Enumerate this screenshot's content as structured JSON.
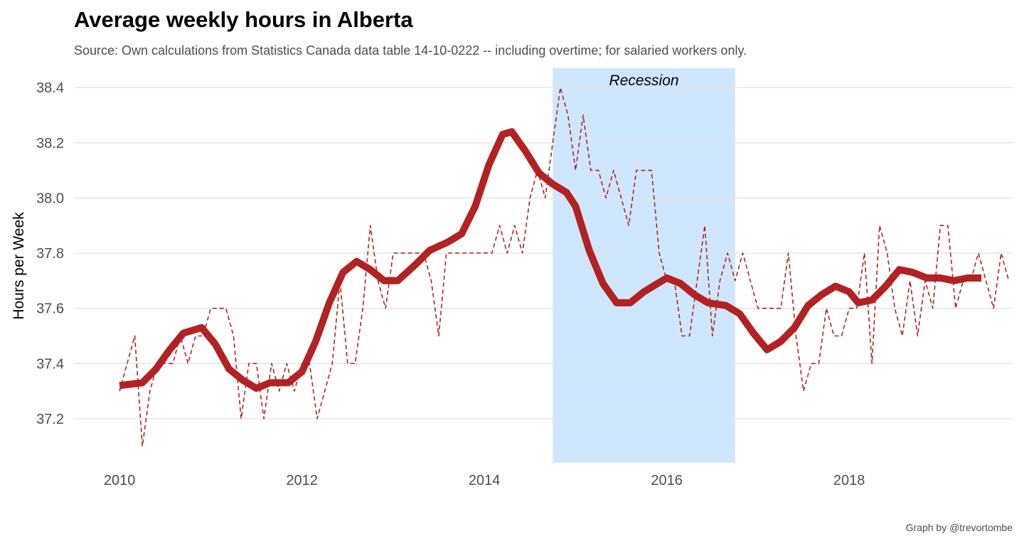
{
  "chart_data": {
    "type": "line",
    "title": "Average weekly hours in Alberta",
    "subtitle": "Source: Own calculations from  Statistics Canada data table 14-10-0222 -- including overtime; for salaried workers only.",
    "caption": "Graph by @trevortombe",
    "xlabel": "",
    "ylabel": "Hours per Week",
    "xlim": [
      2009.5,
      2019.8
    ],
    "ylim": [
      37.04,
      38.47
    ],
    "x_ticks": [
      2010,
      2012,
      2014,
      2016,
      2018
    ],
    "y_ticks": [
      37.2,
      37.4,
      37.6,
      37.8,
      38.0,
      38.2,
      38.4
    ],
    "grid": true,
    "colors": {
      "series": "#b22222",
      "recession_band": "#cfe6ff"
    },
    "annotation": {
      "label": "Recession",
      "x_start": 2014.75,
      "x_end": 2016.75
    },
    "series": [
      {
        "style": "dashed",
        "points": [
          [
            2010.0,
            37.3
          ],
          [
            2010.083,
            37.4
          ],
          [
            2010.167,
            37.5
          ],
          [
            2010.25,
            37.1
          ],
          [
            2010.333,
            37.3
          ],
          [
            2010.417,
            37.4
          ],
          [
            2010.5,
            37.4
          ],
          [
            2010.583,
            37.4
          ],
          [
            2010.667,
            37.5
          ],
          [
            2010.75,
            37.4
          ],
          [
            2010.833,
            37.5
          ],
          [
            2010.917,
            37.5
          ],
          [
            2011.0,
            37.6
          ],
          [
            2011.083,
            37.6
          ],
          [
            2011.167,
            37.6
          ],
          [
            2011.25,
            37.5
          ],
          [
            2011.333,
            37.2
          ],
          [
            2011.417,
            37.4
          ],
          [
            2011.5,
            37.4
          ],
          [
            2011.583,
            37.2
          ],
          [
            2011.667,
            37.4
          ],
          [
            2011.75,
            37.3
          ],
          [
            2011.833,
            37.4
          ],
          [
            2011.917,
            37.3
          ],
          [
            2012.0,
            37.4
          ],
          [
            2012.083,
            37.4
          ],
          [
            2012.167,
            37.2
          ],
          [
            2012.25,
            37.3
          ],
          [
            2012.333,
            37.4
          ],
          [
            2012.417,
            37.7
          ],
          [
            2012.5,
            37.4
          ],
          [
            2012.583,
            37.4
          ],
          [
            2012.667,
            37.6
          ],
          [
            2012.75,
            37.9
          ],
          [
            2012.833,
            37.7
          ],
          [
            2012.917,
            37.6
          ],
          [
            2013.0,
            37.8
          ],
          [
            2013.083,
            37.8
          ],
          [
            2013.167,
            37.8
          ],
          [
            2013.25,
            37.8
          ],
          [
            2013.333,
            37.8
          ],
          [
            2013.417,
            37.7
          ],
          [
            2013.5,
            37.5
          ],
          [
            2013.583,
            37.8
          ],
          [
            2013.667,
            37.8
          ],
          [
            2013.75,
            37.8
          ],
          [
            2013.833,
            37.8
          ],
          [
            2013.917,
            37.8
          ],
          [
            2014.0,
            37.8
          ],
          [
            2014.083,
            37.8
          ],
          [
            2014.167,
            37.9
          ],
          [
            2014.25,
            37.8
          ],
          [
            2014.333,
            37.9
          ],
          [
            2014.417,
            37.8
          ],
          [
            2014.5,
            38.0
          ],
          [
            2014.583,
            38.1
          ],
          [
            2014.667,
            38.0
          ],
          [
            2014.75,
            38.2
          ],
          [
            2014.833,
            38.4
          ],
          [
            2014.917,
            38.3
          ],
          [
            2015.0,
            38.1
          ],
          [
            2015.083,
            38.3
          ],
          [
            2015.167,
            38.1
          ],
          [
            2015.25,
            38.1
          ],
          [
            2015.333,
            38.0
          ],
          [
            2015.417,
            38.1
          ],
          [
            2015.5,
            38.0
          ],
          [
            2015.583,
            37.9
          ],
          [
            2015.667,
            38.1
          ],
          [
            2015.75,
            38.1
          ],
          [
            2015.833,
            38.1
          ],
          [
            2015.917,
            37.8
          ],
          [
            2016.0,
            37.7
          ],
          [
            2016.083,
            37.7
          ],
          [
            2016.167,
            37.5
          ],
          [
            2016.25,
            37.5
          ],
          [
            2016.333,
            37.7
          ],
          [
            2016.417,
            37.9
          ],
          [
            2016.5,
            37.5
          ],
          [
            2016.583,
            37.7
          ],
          [
            2016.667,
            37.8
          ],
          [
            2016.75,
            37.7
          ],
          [
            2016.833,
            37.8
          ],
          [
            2016.917,
            37.7
          ],
          [
            2017.0,
            37.6
          ],
          [
            2017.083,
            37.6
          ],
          [
            2017.167,
            37.6
          ],
          [
            2017.25,
            37.6
          ],
          [
            2017.333,
            37.8
          ],
          [
            2017.417,
            37.5
          ],
          [
            2017.5,
            37.3
          ],
          [
            2017.583,
            37.4
          ],
          [
            2017.667,
            37.4
          ],
          [
            2017.75,
            37.6
          ],
          [
            2017.833,
            37.5
          ],
          [
            2017.917,
            37.5
          ],
          [
            2018.0,
            37.6
          ],
          [
            2018.083,
            37.6
          ],
          [
            2018.167,
            37.8
          ],
          [
            2018.25,
            37.4
          ],
          [
            2018.333,
            37.9
          ],
          [
            2018.417,
            37.8
          ],
          [
            2018.5,
            37.6
          ],
          [
            2018.583,
            37.5
          ],
          [
            2018.667,
            37.7
          ],
          [
            2018.75,
            37.5
          ],
          [
            2018.833,
            37.7
          ],
          [
            2018.917,
            37.6
          ],
          [
            2019.0,
            37.9
          ],
          [
            2019.083,
            37.9
          ],
          [
            2019.167,
            37.6
          ],
          [
            2019.25,
            37.7
          ],
          [
            2019.333,
            37.7
          ],
          [
            2019.417,
            37.8
          ],
          [
            2019.5,
            37.7
          ],
          [
            2019.583,
            37.6
          ],
          [
            2019.667,
            37.8
          ],
          [
            2019.75,
            37.7
          ]
        ]
      },
      {
        "style": "smoothed",
        "points": [
          [
            2010.0,
            37.32
          ],
          [
            2010.25,
            37.33
          ],
          [
            2010.4,
            37.38
          ],
          [
            2010.55,
            37.45
          ],
          [
            2010.7,
            37.51
          ],
          [
            2010.9,
            37.53
          ],
          [
            2011.05,
            37.47
          ],
          [
            2011.2,
            37.38
          ],
          [
            2011.35,
            37.34
          ],
          [
            2011.5,
            37.31
          ],
          [
            2011.65,
            37.33
          ],
          [
            2011.85,
            37.33
          ],
          [
            2012.0,
            37.37
          ],
          [
            2012.15,
            37.48
          ],
          [
            2012.3,
            37.62
          ],
          [
            2012.45,
            37.73
          ],
          [
            2012.6,
            37.77
          ],
          [
            2012.75,
            37.74
          ],
          [
            2012.9,
            37.7
          ],
          [
            2013.05,
            37.7
          ],
          [
            2013.25,
            37.76
          ],
          [
            2013.4,
            37.81
          ],
          [
            2013.6,
            37.84
          ],
          [
            2013.75,
            37.87
          ],
          [
            2013.9,
            37.97
          ],
          [
            2014.05,
            38.12
          ],
          [
            2014.2,
            38.23
          ],
          [
            2014.3,
            38.24
          ],
          [
            2014.45,
            38.17
          ],
          [
            2014.6,
            38.09
          ],
          [
            2014.75,
            38.05
          ],
          [
            2014.9,
            38.02
          ],
          [
            2015.0,
            37.97
          ],
          [
            2015.15,
            37.81
          ],
          [
            2015.3,
            37.69
          ],
          [
            2015.45,
            37.62
          ],
          [
            2015.6,
            37.62
          ],
          [
            2015.75,
            37.66
          ],
          [
            2015.9,
            37.69
          ],
          [
            2016.0,
            37.71
          ],
          [
            2016.15,
            37.69
          ],
          [
            2016.3,
            37.65
          ],
          [
            2016.45,
            37.62
          ],
          [
            2016.65,
            37.61
          ],
          [
            2016.8,
            37.58
          ],
          [
            2016.95,
            37.51
          ],
          [
            2017.1,
            37.45
          ],
          [
            2017.25,
            37.48
          ],
          [
            2017.4,
            37.53
          ],
          [
            2017.55,
            37.61
          ],
          [
            2017.7,
            37.65
          ],
          [
            2017.85,
            37.68
          ],
          [
            2018.0,
            37.66
          ],
          [
            2018.1,
            37.62
          ],
          [
            2018.25,
            37.63
          ],
          [
            2018.4,
            37.68
          ],
          [
            2018.55,
            37.74
          ],
          [
            2018.7,
            37.73
          ],
          [
            2018.85,
            37.71
          ],
          [
            2019.0,
            37.71
          ],
          [
            2019.15,
            37.7
          ],
          [
            2019.3,
            37.71
          ],
          [
            2019.45,
            37.71
          ]
        ]
      }
    ]
  }
}
